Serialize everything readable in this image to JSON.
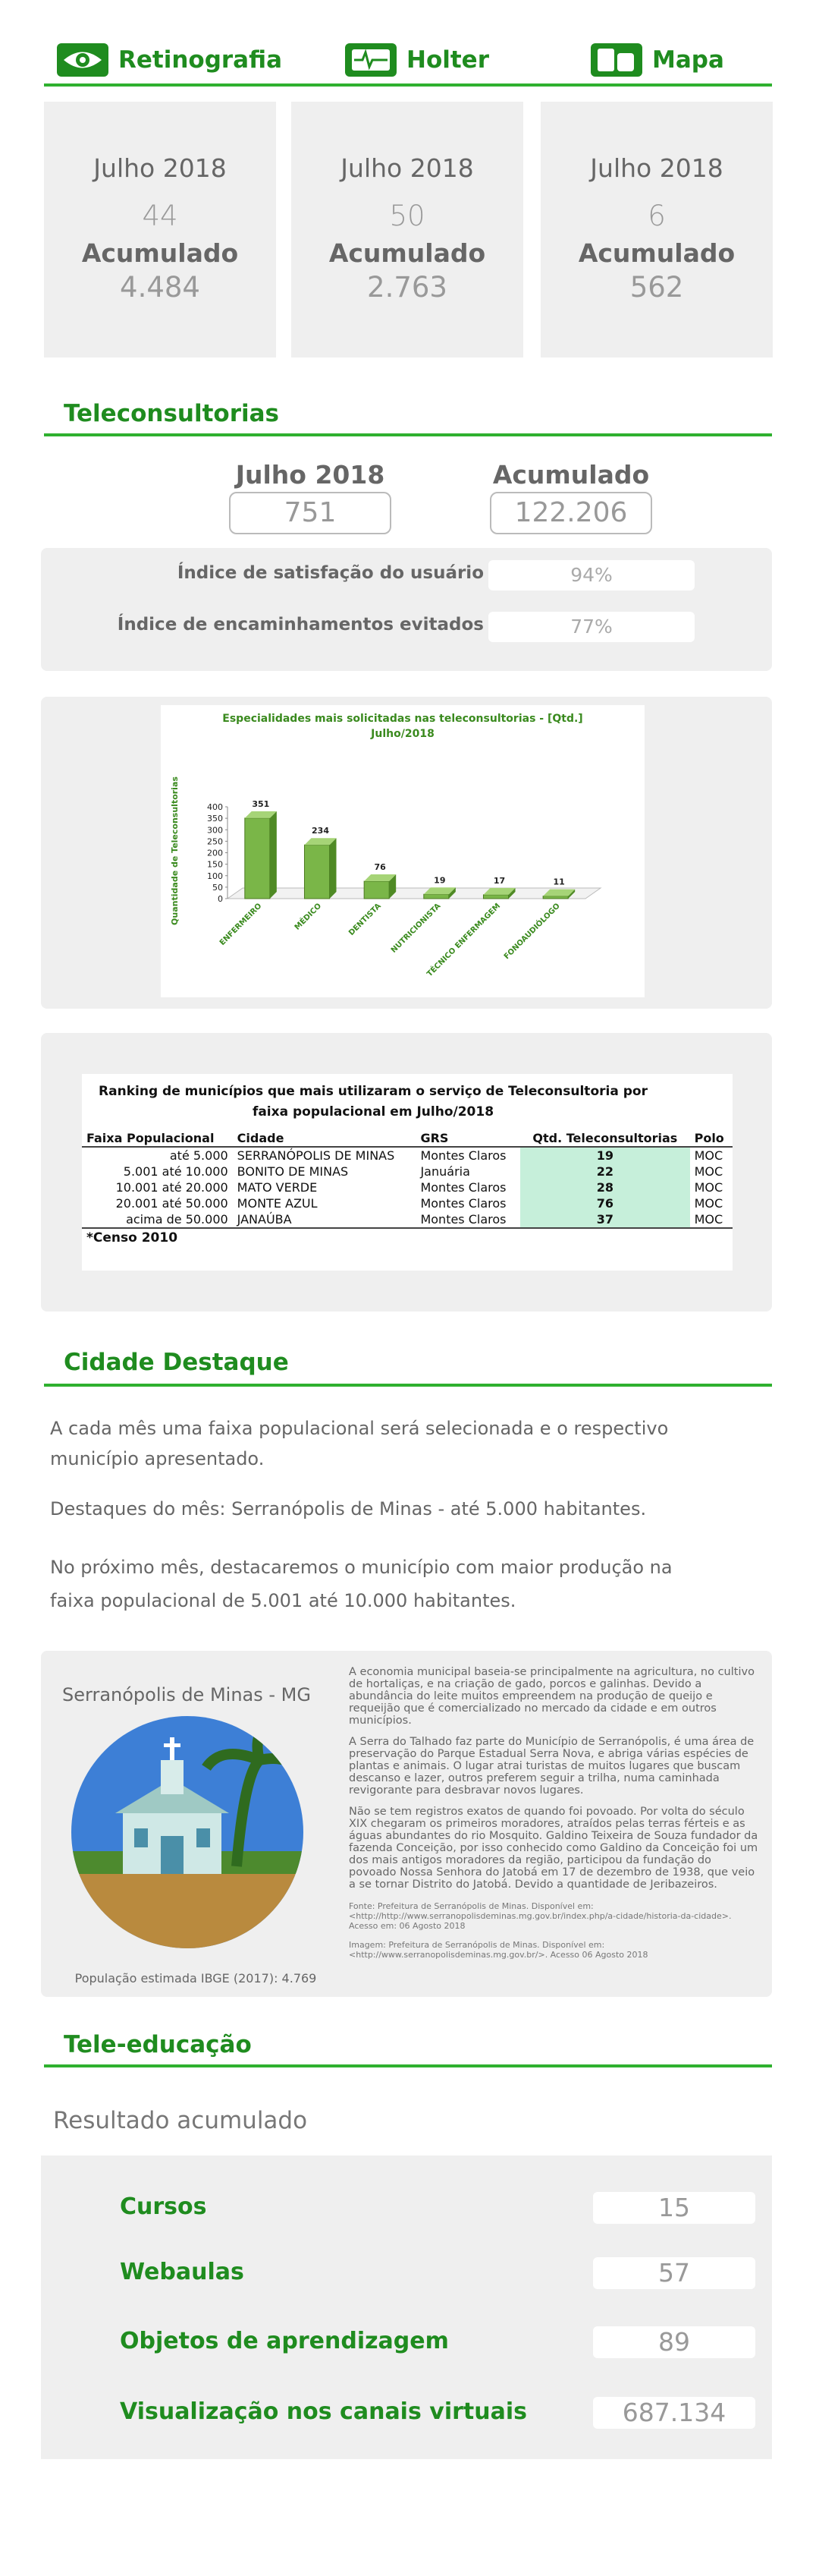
{
  "tabs": [
    {
      "label": "Retinografia",
      "period": "Julho 2018",
      "month_value": "44",
      "cumulative_label": "Acumulado",
      "cumulative_value": "4.484"
    },
    {
      "label": "Holter",
      "period": "Julho 2018",
      "month_value": "50",
      "cumulative_label": "Acumulado",
      "cumulative_value": "2.763"
    },
    {
      "label": "Mapa",
      "period": "Julho 2018",
      "month_value": "6",
      "cumulative_label": "Acumulado",
      "cumulative_value": "562"
    }
  ],
  "teleconsultorias": {
    "title": "Teleconsultorias",
    "month_label": "Julho 2018",
    "month_value": "751",
    "cumulative_label": "Acumulado",
    "cumulative_value": "122.206",
    "indices": [
      {
        "label": "Índice de satisfação do usuário",
        "value": "94%"
      },
      {
        "label": "Índice de encaminhamentos evitados",
        "value": "77%"
      }
    ]
  },
  "chart_data": {
    "type": "bar",
    "title": "Especialidades mais solicitadas nas teleconsultorias - [Qtd.]",
    "subtitle": "Julho/2018",
    "y_label": "Quantidade de Teleconsultorias",
    "categories": [
      "ENFERMEIRO",
      "MÉDICO",
      "DENTISTA",
      "NUTRICIONISTA",
      "TÉCNICO ENFERMAGEM",
      "FONOAUDIÓLOGO"
    ],
    "values": [
      351,
      234,
      76,
      19,
      17,
      11
    ],
    "color": "#7ab648",
    "ylim": [
      0,
      400
    ],
    "yticks": [
      0,
      50,
      100,
      150,
      200,
      250,
      300,
      350,
      400
    ]
  },
  "ranking": {
    "title": "Ranking de municípios que mais utilizaram o serviço de Teleconsultoria por faixa populacional em Julho/2018",
    "columns": [
      "Faixa Populacional",
      "Cidade",
      "GRS",
      "Qtd. Teleconsultorias",
      "Polo"
    ],
    "rows": [
      [
        "até 5.000",
        "SERRANÓPOLIS DE MINAS",
        "Montes Claros",
        "19",
        "MOC"
      ],
      [
        "5.001 até 10.000",
        "BONITO DE MINAS",
        "Januária",
        "22",
        "MOC"
      ],
      [
        "10.001 até 20.000",
        "MATO VERDE",
        "Montes Claros",
        "28",
        "MOC"
      ],
      [
        "20.001 até 50.000",
        "MONTE AZUL",
        "Montes Claros",
        "76",
        "MOC"
      ],
      [
        "acima de 50.000",
        "JANAÚBA",
        "Montes Claros",
        "37",
        "MOC"
      ]
    ],
    "note": "*Censo 2010"
  },
  "cidade_destaque": {
    "title": "Cidade Destaque",
    "paragraphs": [
      "A cada mês uma faixa populacional será selecionada e o respectivo município apresentado.",
      "Destaques do mês: Serranópolis de Minas - até 5.000 habitantes.",
      "No próximo mês, destacaremos o município com maior produção na faixa populacional de 5.001 até 10.000 habitantes."
    ],
    "city": {
      "name": "Serranópolis de Minas - MG",
      "population": "População estimada IBGE (2017): 4.769",
      "description": [
        "A economia municipal baseia-se principalmente na agricultura, no cultivo de hortaliças, e na criação de gado, porcos e galinhas. Devido a abundância do leite muitos empreendem na produção de queijo e requeijão que é comercializado no mercado da cidade e em outros municípios.",
        "A Serra do Talhado faz parte do Município de Serranópolis, é uma área de preservação do Parque Estadual Serra Nova, e abriga várias espécies de plantas e animais. O lugar atrai turistas de muitos lugares que buscam descanso e lazer, outros preferem seguir a trilha, numa caminhada revigorante para desbravar novos lugares.",
        "Não se tem registros exatos de quando foi povoado. Por volta do século XIX chegaram os primeiros moradores, atraídos pelas terras férteis e as águas abundantes do rio Mosquito. Galdino Teixeira de Souza fundador da fazenda Conceição, por isso conhecido como Galdino da Conceição foi um dos mais antigos moradores da região, participou da fundação do povoado Nossa Senhora do Jatobá em 17 de dezembro de 1938, que veio a se tornar Distrito do Jatobá. Devido a quantidade de Jeribazeiros."
      ],
      "sources": [
        "Fonte: Prefeitura de Serranópolis de Minas. Disponível em: <http://http://www.serranopolisdeminas.mg.gov.br/index.php/a-cidade/historia-da-cidade>. Acesso em: 06 Agosto 2018",
        "Imagem: Prefeitura de Serranópolis de Minas. Disponível em: <http://www.serranopolisdeminas.mg.gov.br/>. Acesso 06 Agosto 2018"
      ]
    }
  },
  "tele_educacao": {
    "title": "Tele-educação",
    "subtitle": "Resultado acumulado",
    "items": [
      {
        "label": "Cursos",
        "value": "15"
      },
      {
        "label": "Webaulas",
        "value": "57"
      },
      {
        "label": "Objetos de aprendizagem",
        "value": "89"
      },
      {
        "label": "Visualização nos canais virtuais",
        "value": "687.134"
      }
    ]
  }
}
